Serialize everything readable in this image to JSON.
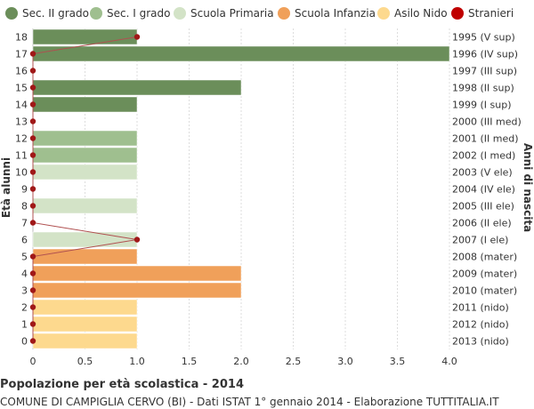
{
  "chart_data": {
    "type": "bar",
    "orientation": "horizontal",
    "xlabel": "",
    "ylabel": "Età alunni",
    "ylabel_right": "Anni di nascita",
    "xlim": [
      0,
      4
    ],
    "xticks": [
      "0",
      "0.5",
      "1.0",
      "1.5",
      "2.0",
      "2.5",
      "3.0",
      "3.5",
      "4.0"
    ],
    "grid": true,
    "legend_position": "top",
    "legend": [
      {
        "name": "Sec. II grado",
        "color": "#6b8e5a"
      },
      {
        "name": "Sec. I grado",
        "color": "#9fbf8f"
      },
      {
        "name": "Scuola Primaria",
        "color": "#d3e3c7"
      },
      {
        "name": "Scuola Infanzia",
        "color": "#f0a05a"
      },
      {
        "name": "Asilo Nido",
        "color": "#fdd98e"
      },
      {
        "name": "Stranieri",
        "color": "#c00000"
      }
    ],
    "rows": [
      {
        "age": "18",
        "birth": "1995 (V sup)",
        "value": 1,
        "category": "Sec. II grado",
        "stranieri": 1
      },
      {
        "age": "17",
        "birth": "1996 (IV sup)",
        "value": 4,
        "category": "Sec. II grado",
        "stranieri": 0
      },
      {
        "age": "16",
        "birth": "1997 (III sup)",
        "value": 0,
        "category": "Sec. II grado",
        "stranieri": 0
      },
      {
        "age": "15",
        "birth": "1998 (II sup)",
        "value": 2,
        "category": "Sec. II grado",
        "stranieri": 0
      },
      {
        "age": "14",
        "birth": "1999 (I sup)",
        "value": 1,
        "category": "Sec. II grado",
        "stranieri": 0
      },
      {
        "age": "13",
        "birth": "2000 (III med)",
        "value": 0,
        "category": "Sec. I grado",
        "stranieri": 0
      },
      {
        "age": "12",
        "birth": "2001 (II med)",
        "value": 1,
        "category": "Sec. I grado",
        "stranieri": 0
      },
      {
        "age": "11",
        "birth": "2002 (I med)",
        "value": 1,
        "category": "Sec. I grado",
        "stranieri": 0
      },
      {
        "age": "10",
        "birth": "2003 (V ele)",
        "value": 1,
        "category": "Scuola Primaria",
        "stranieri": 0
      },
      {
        "age": "9",
        "birth": "2004 (IV ele)",
        "value": 0,
        "category": "Scuola Primaria",
        "stranieri": 0
      },
      {
        "age": "8",
        "birth": "2005 (III ele)",
        "value": 1,
        "category": "Scuola Primaria",
        "stranieri": 0
      },
      {
        "age": "7",
        "birth": "2006 (II ele)",
        "value": 0,
        "category": "Scuola Primaria",
        "stranieri": 0
      },
      {
        "age": "6",
        "birth": "2007 (I ele)",
        "value": 1,
        "category": "Scuola Primaria",
        "stranieri": 1
      },
      {
        "age": "5",
        "birth": "2008 (mater)",
        "value": 1,
        "category": "Scuola Infanzia",
        "stranieri": 0
      },
      {
        "age": "4",
        "birth": "2009 (mater)",
        "value": 2,
        "category": "Scuola Infanzia",
        "stranieri": 0
      },
      {
        "age": "3",
        "birth": "2010 (mater)",
        "value": 2,
        "category": "Scuola Infanzia",
        "stranieri": 0
      },
      {
        "age": "2",
        "birth": "2011 (nido)",
        "value": 1,
        "category": "Asilo Nido",
        "stranieri": 0
      },
      {
        "age": "1",
        "birth": "2012 (nido)",
        "value": 1,
        "category": "Asilo Nido",
        "stranieri": 0
      },
      {
        "age": "0",
        "birth": "2013 (nido)",
        "value": 1,
        "category": "Asilo Nido",
        "stranieri": 0
      }
    ]
  },
  "footer": {
    "title": "Popolazione per età scolastica - 2014",
    "subtitle": "COMUNE DI CAMPIGLIA CERVO (BI) - Dati ISTAT 1° gennaio 2014 - Elaborazione TUTTITALIA.IT"
  },
  "colors": {
    "grid": "#dddddd",
    "stranieri_line": "#b05050",
    "bar_edge": "#ffffff"
  }
}
